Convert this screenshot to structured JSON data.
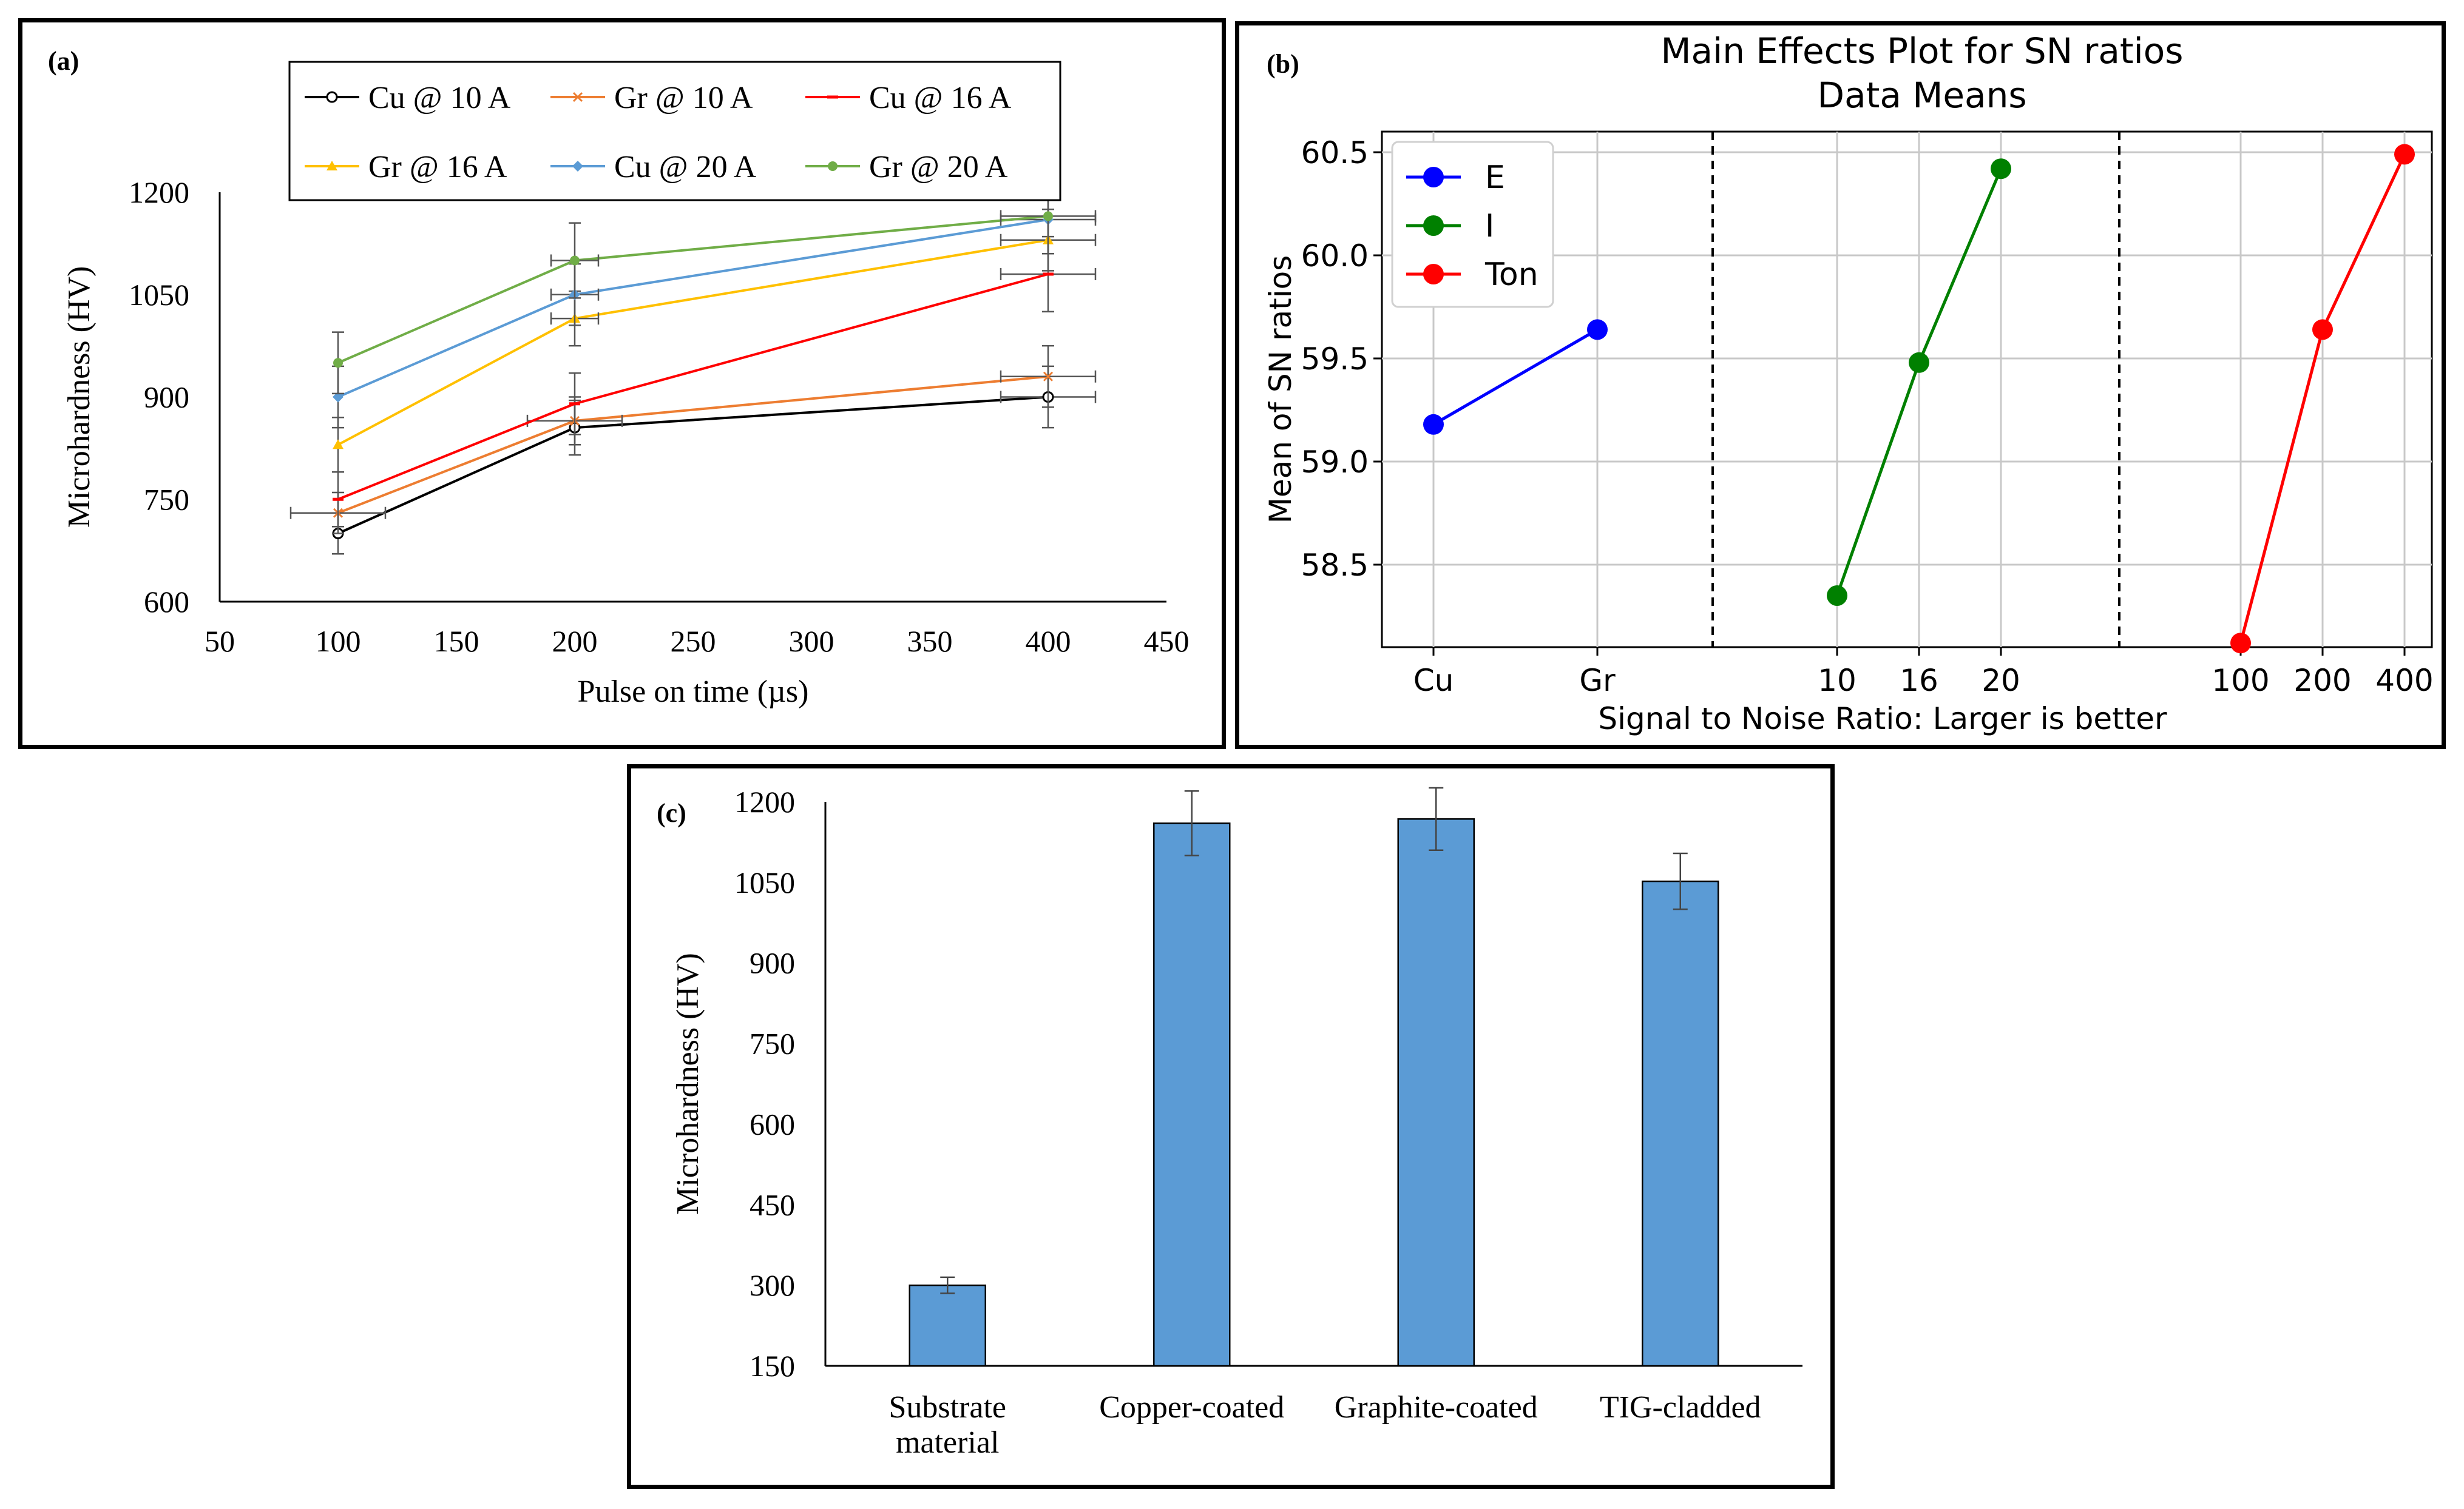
{
  "chart_data": [
    {
      "panel": "(a)",
      "type": "line",
      "xlabel": "Pulse on time (µs)",
      "ylabel": "Microhardness (HV)",
      "xlim": [
        50,
        450
      ],
      "ylim": [
        600,
        1200
      ],
      "xticks": [
        50,
        100,
        150,
        200,
        250,
        300,
        350,
        400,
        450
      ],
      "yticks": [
        600,
        750,
        900,
        1050,
        1200
      ],
      "x": [
        100,
        200,
        400
      ],
      "legend": "top, two rows, boxed",
      "series": [
        {
          "name": "Cu @ 10 A",
          "values": [
            700,
            855,
            900
          ],
          "err": [
            30,
            40,
            45
          ],
          "xerr": [
            0,
            0,
            20
          ],
          "color": "#000000",
          "marker": "circle-open"
        },
        {
          "name": "Gr @ 10 A",
          "values": [
            730,
            865,
            930
          ],
          "err": [
            30,
            35,
            45
          ],
          "xerr": [
            20,
            20,
            20
          ],
          "color": "#ed7d31",
          "marker": "x"
        },
        {
          "name": "Cu @ 16 A",
          "values": [
            750,
            890,
            1080
          ],
          "err": [
            40,
            45,
            55
          ],
          "xerr": [
            0,
            0,
            20
          ],
          "color": "#ff0000",
          "marker": "dash"
        },
        {
          "name": "Gr @ 16 A",
          "values": [
            830,
            1015,
            1130
          ],
          "err": [
            40,
            40,
            45
          ],
          "xerr": [
            0,
            10,
            20
          ],
          "color": "#ffc000",
          "marker": "triangle"
        },
        {
          "name": "Cu @ 20 A",
          "values": [
            900,
            1050,
            1160
          ],
          "err": [
            45,
            45,
            50
          ],
          "xerr": [
            0,
            10,
            20
          ],
          "color": "#5b9bd5",
          "marker": "diamond"
        },
        {
          "name": "Gr @ 20 A",
          "values": [
            950,
            1100,
            1165
          ],
          "err": [
            45,
            55,
            55
          ],
          "xerr": [
            0,
            10,
            20
          ],
          "color": "#70ad47",
          "marker": "circle"
        }
      ]
    },
    {
      "panel": "(b)",
      "type": "line",
      "title": "Main Effects Plot for SN ratios",
      "subtitle": "Data Means",
      "xlabel": "Signal to Noise Ratio: Larger is better",
      "ylabel": "Mean of SN ratios",
      "ylim": [
        58.1,
        60.6
      ],
      "yticks": [
        58.5,
        59.0,
        59.5,
        60.0,
        60.5
      ],
      "grid": true,
      "legend": "top-left",
      "series": [
        {
          "name": "E",
          "categories": [
            "Cu",
            "Gr"
          ],
          "values": [
            59.18,
            59.64
          ],
          "color": "#0000ff"
        },
        {
          "name": "I",
          "categories": [
            "10",
            "16",
            "20"
          ],
          "values": [
            58.35,
            59.48,
            60.42
          ],
          "color": "#008000"
        },
        {
          "name": "Ton",
          "categories": [
            "100",
            "200",
            "400"
          ],
          "values": [
            58.12,
            59.64,
            60.49
          ],
          "color": "#ff0000"
        }
      ]
    },
    {
      "panel": "(c)",
      "type": "bar",
      "ylabel": "Microhardness (HV)",
      "ylim": [
        150,
        1200
      ],
      "yticks": [
        150,
        300,
        450,
        600,
        750,
        900,
        1050,
        1200
      ],
      "categories": [
        [
          "Substrate",
          "material"
        ],
        [
          "Copper-coated"
        ],
        [
          "Graphite-coated"
        ],
        [
          "TIG-cladded"
        ]
      ],
      "values": [
        300,
        1160,
        1168,
        1052
      ],
      "err": [
        15,
        60,
        58,
        52
      ],
      "color": "#5b9bd5"
    }
  ]
}
